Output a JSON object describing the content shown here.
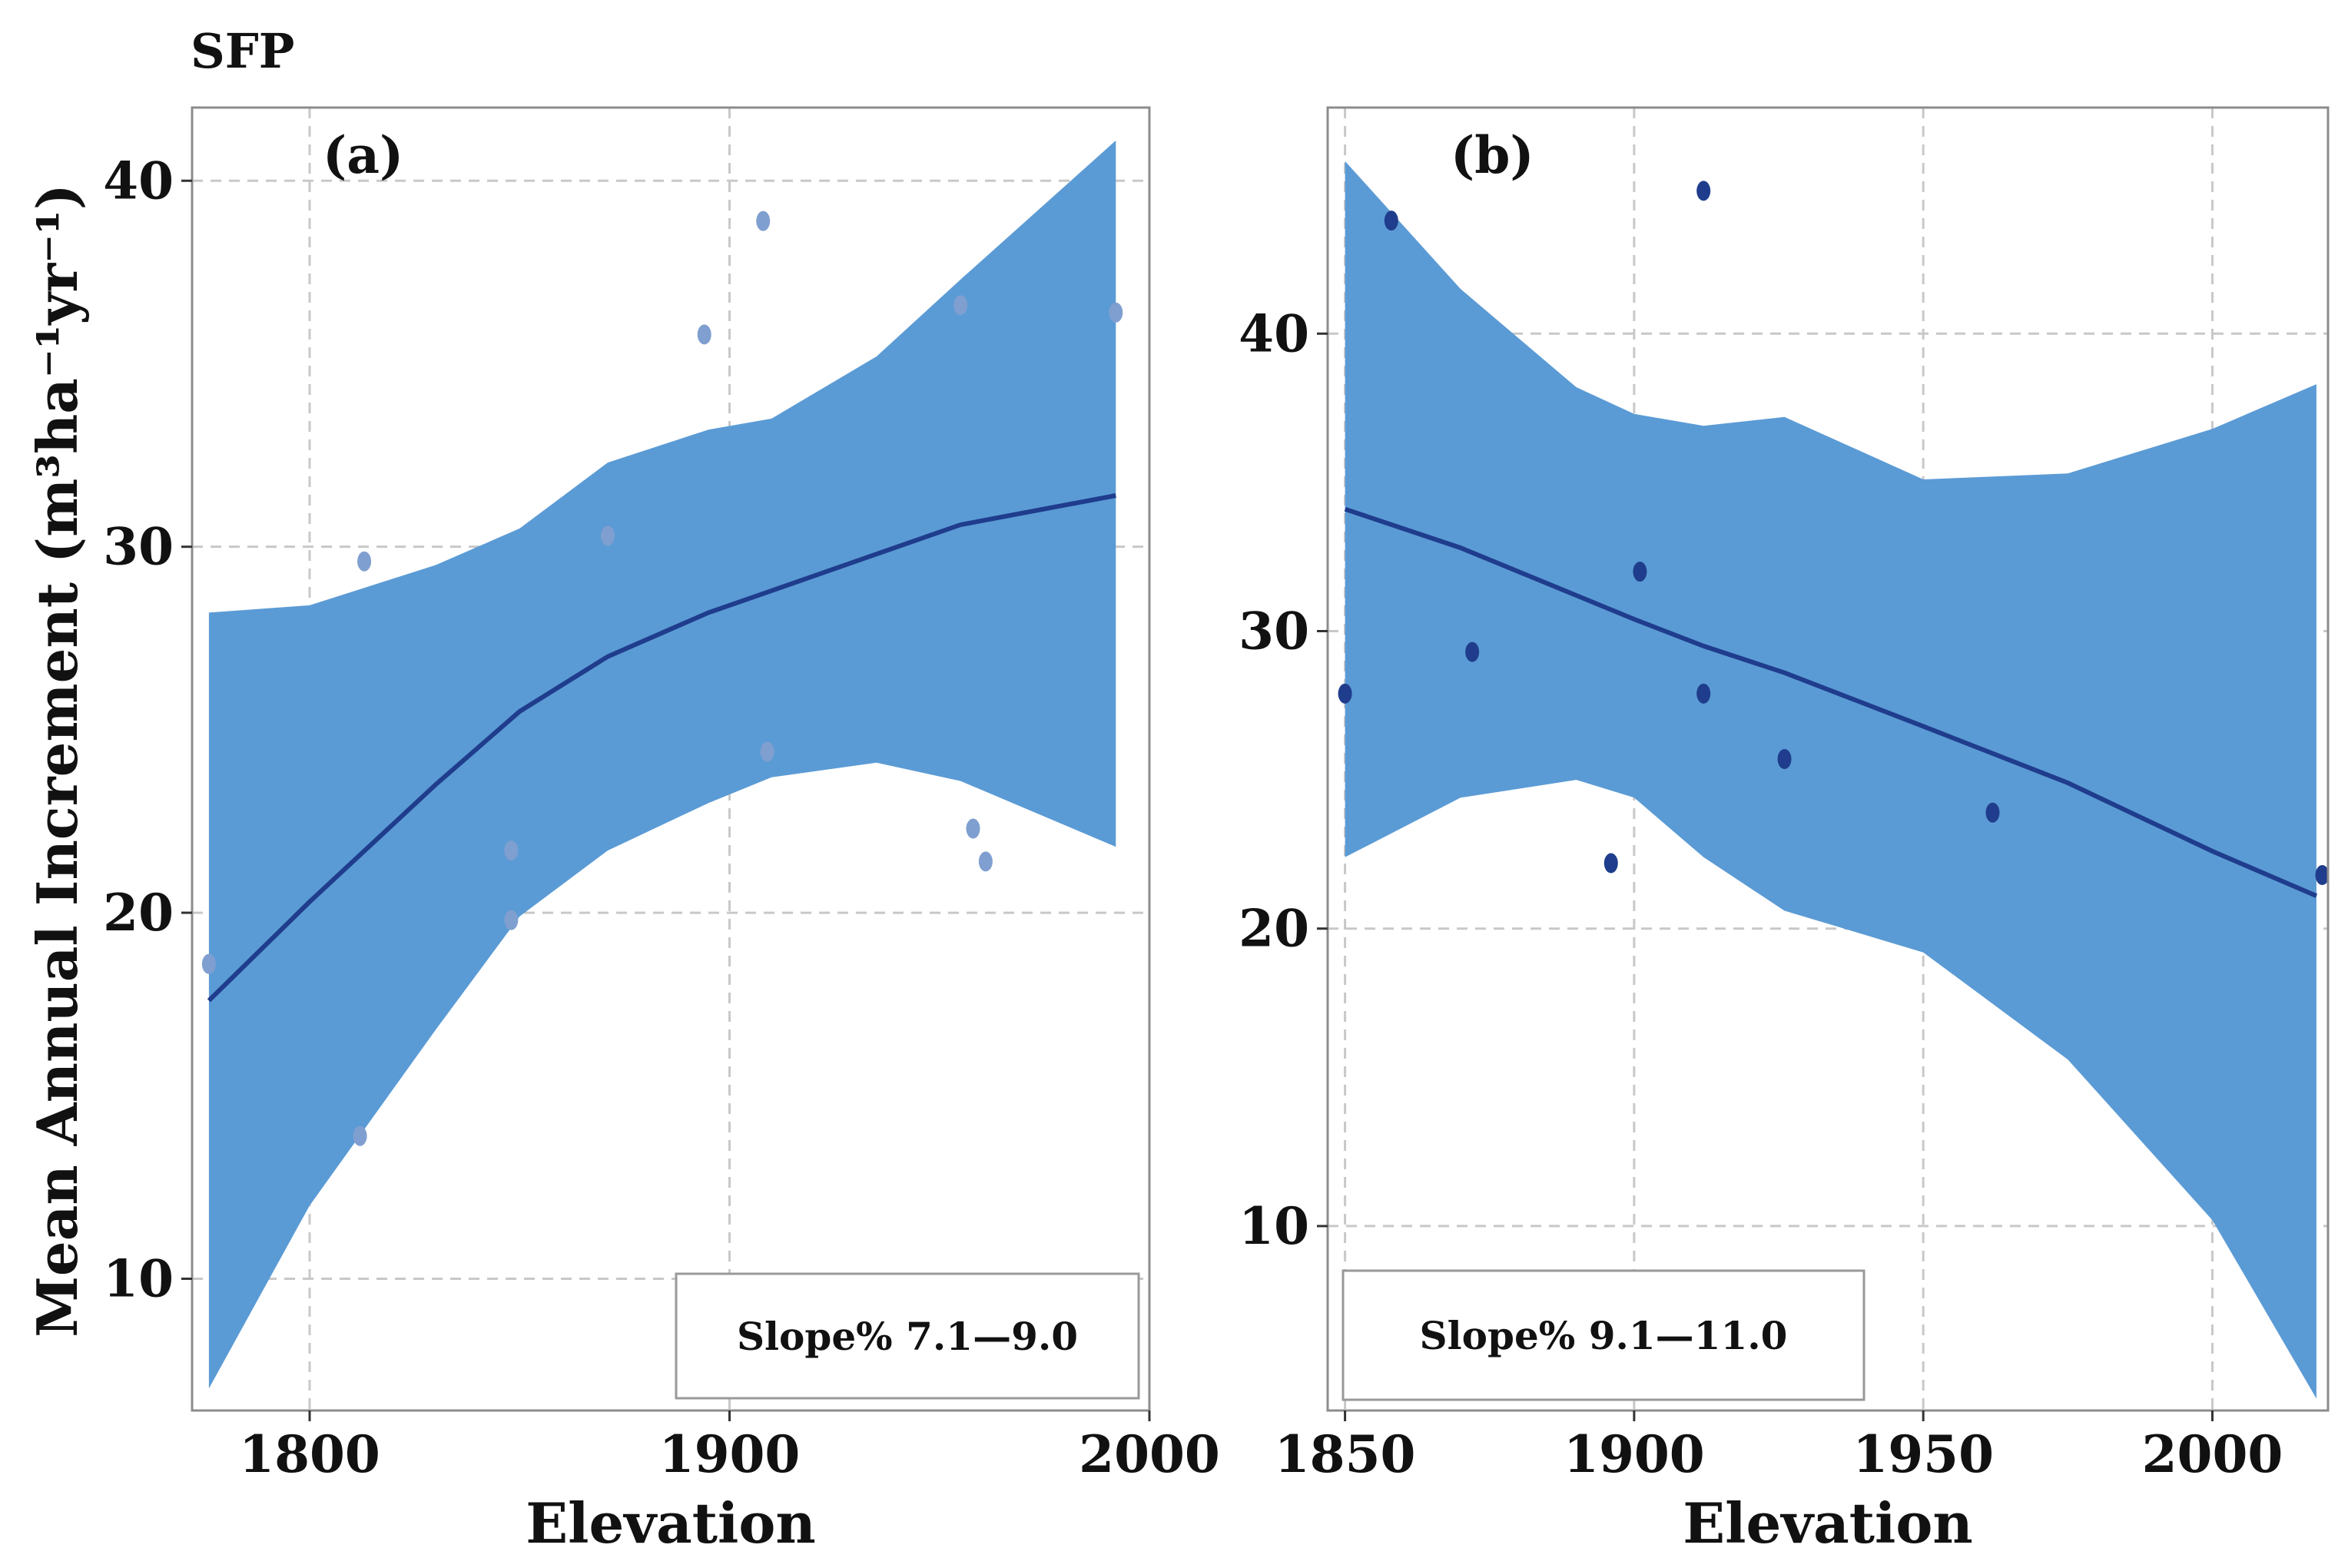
{
  "figure_title": "SFP",
  "ylabel": "Mean Annual Increment (m³ha⁻¹yr⁻¹)",
  "colors": {
    "band": "#5b9bd5",
    "line": "#1f3d8c",
    "points_a": "#7f9fd0",
    "points_b": "#1f3d8c",
    "grid": "#c8c8c8",
    "frame": "#8c8c8c"
  },
  "chart_data": [
    {
      "type": "line",
      "panel_label": "(a)",
      "annotation": "Slope% 7.1—9.0",
      "xlabel": "Elevation",
      "xlim": [
        1772,
        2000
      ],
      "ylim": [
        6.4,
        42.0
      ],
      "xticks": [
        "1800",
        "1900",
        "2000"
      ],
      "xtick_values": [
        1800,
        1900,
        2000
      ],
      "yticks": [
        "10",
        "20",
        "30",
        "40"
      ],
      "ytick_values": [
        10,
        20,
        30,
        40
      ],
      "points": [
        {
          "x": 1776,
          "y": 18.6
        },
        {
          "x": 1812,
          "y": 13.9
        },
        {
          "x": 1813,
          "y": 29.6
        },
        {
          "x": 1848,
          "y": 21.7
        },
        {
          "x": 1848,
          "y": 19.8
        },
        {
          "x": 1871,
          "y": 30.3
        },
        {
          "x": 1894,
          "y": 35.8
        },
        {
          "x": 1908,
          "y": 38.9
        },
        {
          "x": 1909,
          "y": 24.4
        },
        {
          "x": 1955,
          "y": 36.6
        },
        {
          "x": 1958,
          "y": 22.3
        },
        {
          "x": 1961,
          "y": 21.4
        },
        {
          "x": 1992,
          "y": 36.4
        }
      ],
      "fit": {
        "x": [
          1776,
          1800,
          1830,
          1850,
          1871,
          1895,
          1910,
          1935,
          1955,
          1992
        ],
        "y": [
          17.6,
          20.3,
          23.5,
          25.5,
          27.0,
          28.2,
          28.8,
          29.8,
          30.6,
          31.4
        ],
        "upper": [
          28.2,
          28.4,
          29.5,
          30.5,
          32.3,
          33.2,
          33.5,
          35.2,
          37.3,
          41.1
        ],
        "lower": [
          7.0,
          12.0,
          16.8,
          19.9,
          21.7,
          23.0,
          23.7,
          24.1,
          23.6,
          21.8
        ]
      }
    },
    {
      "type": "line",
      "panel_label": "(b)",
      "annotation": "Slope% 9.1—11.0",
      "xlabel": "Elevation",
      "xlim": [
        1847,
        2020
      ],
      "ylim": [
        3.8,
        47.6
      ],
      "xticks": [
        "1850",
        "1900",
        "1950",
        "2000"
      ],
      "xtick_values": [
        1850,
        1900,
        1950,
        2000
      ],
      "yticks": [
        "10",
        "20",
        "30",
        "40"
      ],
      "ytick_values": [
        10,
        20,
        30,
        40
      ],
      "points": [
        {
          "x": 1850,
          "y": 27.9
        },
        {
          "x": 1858,
          "y": 43.8
        },
        {
          "x": 1872,
          "y": 29.3
        },
        {
          "x": 1896,
          "y": 22.2
        },
        {
          "x": 1901,
          "y": 32.0
        },
        {
          "x": 1912,
          "y": 27.9
        },
        {
          "x": 1912,
          "y": 44.8
        },
        {
          "x": 1926,
          "y": 25.7
        },
        {
          "x": 1962,
          "y": 23.9
        },
        {
          "x": 2019,
          "y": 21.8
        }
      ],
      "fit": {
        "x": [
          1850,
          1870,
          1890,
          1900,
          1912,
          1926,
          1950,
          1975,
          2000,
          2018
        ],
        "y": [
          34.1,
          32.8,
          31.2,
          30.4,
          29.5,
          28.6,
          26.8,
          24.9,
          22.6,
          21.1
        ],
        "upper": [
          45.8,
          41.5,
          38.2,
          37.3,
          36.9,
          37.2,
          35.1,
          35.3,
          36.8,
          38.3
        ],
        "lower": [
          22.4,
          24.4,
          25.0,
          24.4,
          22.4,
          20.6,
          19.2,
          15.6,
          10.2,
          4.2
        ]
      }
    }
  ]
}
